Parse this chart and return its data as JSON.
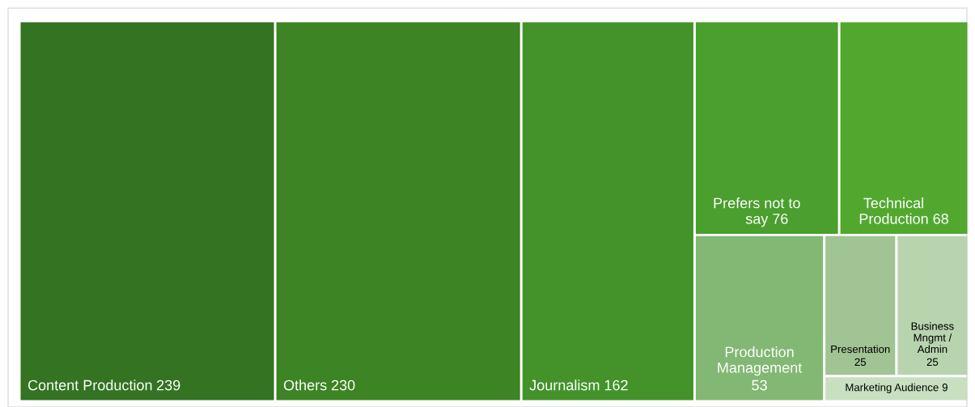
{
  "chart_data": {
    "type": "other",
    "categories": [
      "Content Production",
      "Others",
      "Journalism",
      "Prefers not to say",
      "Technical Production",
      "Production Management",
      "Presentation",
      "Business Mngmt / Admin",
      "Marketing Audience"
    ],
    "values": [
      239,
      230,
      162,
      76,
      68,
      53,
      25,
      25,
      9
    ],
    "colors": [
      "#337321",
      "#3d8424",
      "#43932a",
      "#4a9f2e",
      "#52a82f",
      "#82b873",
      "#a0c493",
      "#b8d4ae",
      "#c8dfc0"
    ],
    "data_labels": true
  }
}
